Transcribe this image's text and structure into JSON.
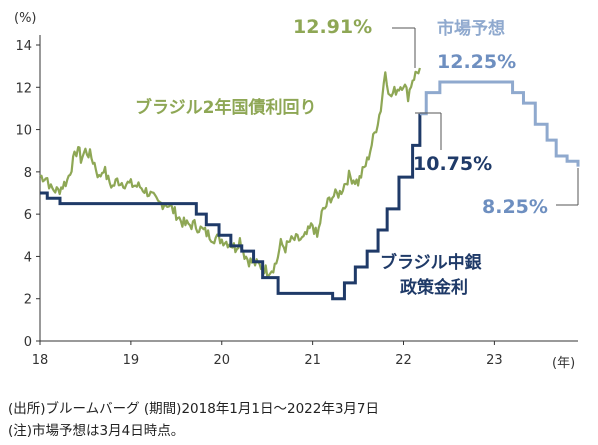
{
  "chart_data": {
    "type": "line",
    "y_unit_label": "(%)",
    "x_unit_label": "(年)",
    "ylim": [
      0,
      14
    ],
    "y_ticks": [
      0,
      2,
      4,
      6,
      8,
      10,
      12,
      14
    ],
    "xlim": [
      18,
      23.92
    ],
    "x_ticks": [
      18,
      19,
      20,
      21,
      22,
      23
    ],
    "x_tick_labels": [
      "18",
      "19",
      "20",
      "21",
      "22",
      "23"
    ],
    "grid": false,
    "series": [
      {
        "name": "ブラジル2年国債利回り",
        "color": "#8ea755",
        "style": "line-noisy",
        "x": [
          18.0,
          18.08,
          18.12,
          18.2,
          18.3,
          18.38,
          18.42,
          18.45,
          18.5,
          18.55,
          18.6,
          18.65,
          18.7,
          18.75,
          18.8,
          18.85,
          18.9,
          19.0,
          19.1,
          19.2,
          19.3,
          19.4,
          19.5,
          19.55,
          19.6,
          19.7,
          19.8,
          19.9,
          20.0,
          20.1,
          20.15,
          20.2,
          20.25,
          20.3,
          20.35,
          20.4,
          20.45,
          20.5,
          20.55,
          20.6,
          20.65,
          20.7,
          20.75,
          20.8,
          20.9,
          21.0,
          21.05,
          21.1,
          21.2,
          21.3,
          21.4,
          21.5,
          21.6,
          21.65,
          21.7,
          21.75,
          21.8,
          21.85,
          21.9,
          21.95,
          22.0,
          22.05,
          22.1,
          22.18
        ],
        "values": [
          7.8,
          7.7,
          7.2,
          7.1,
          7.6,
          8.7,
          9.2,
          8.6,
          9.0,
          8.8,
          8.4,
          7.7,
          8.2,
          7.6,
          7.3,
          7.6,
          7.5,
          7.4,
          7.3,
          7.0,
          6.5,
          6.5,
          6.0,
          5.7,
          5.5,
          5.5,
          5.2,
          4.9,
          4.8,
          4.6,
          4.4,
          4.8,
          4.1,
          3.8,
          3.7,
          3.6,
          3.5,
          3.3,
          3.4,
          3.7,
          4.6,
          4.4,
          4.7,
          4.8,
          4.8,
          5.5,
          4.9,
          6.0,
          6.8,
          7.0,
          7.8,
          7.5,
          8.5,
          9.3,
          10.1,
          11.0,
          12.8,
          11.5,
          11.8,
          12.0,
          12.2,
          11.6,
          12.4,
          12.91
        ]
      },
      {
        "name": "ブラジル中銀政策金利",
        "color": "#1f3a68",
        "style": "step",
        "x": [
          18.0,
          18.08,
          18.22,
          19.6,
          19.72,
          19.83,
          19.97,
          20.1,
          20.22,
          20.35,
          20.45,
          20.62,
          21.22,
          21.35,
          21.47,
          21.6,
          21.72,
          21.82,
          21.95,
          22.1,
          22.18
        ],
        "values": [
          7.0,
          6.75,
          6.5,
          6.5,
          6.0,
          5.5,
          5.0,
          4.5,
          4.25,
          3.75,
          3.0,
          2.25,
          2.0,
          2.75,
          3.5,
          4.25,
          5.25,
          6.25,
          7.75,
          9.25,
          10.75
        ]
      },
      {
        "name": "市場予想",
        "color": "#8fa9ce",
        "style": "step",
        "x": [
          22.18,
          22.25,
          22.4,
          22.55,
          23.1,
          23.2,
          23.32,
          23.45,
          23.58,
          23.68,
          23.8,
          23.92
        ],
        "values": [
          10.75,
          11.75,
          12.25,
          12.25,
          12.25,
          11.75,
          11.25,
          10.25,
          9.5,
          8.75,
          8.5,
          8.25
        ]
      }
    ],
    "annotations": {
      "yield_latest": "12.91%",
      "forecast_peak": "12.25%",
      "policy_latest": "10.75%",
      "forecast_end": "8.25%",
      "yield_series_label": "ブラジル2年国債利回り",
      "forecast_label": "市場予想",
      "policy_label_line1": "ブラジル中銀",
      "policy_label_line2": "政策金利"
    }
  },
  "footnotes": {
    "source": "(出所)ブルームバーグ (期間)2018年1月1日～2022年3月7日",
    "note": "(注)市場予想は3月4日時点。"
  }
}
